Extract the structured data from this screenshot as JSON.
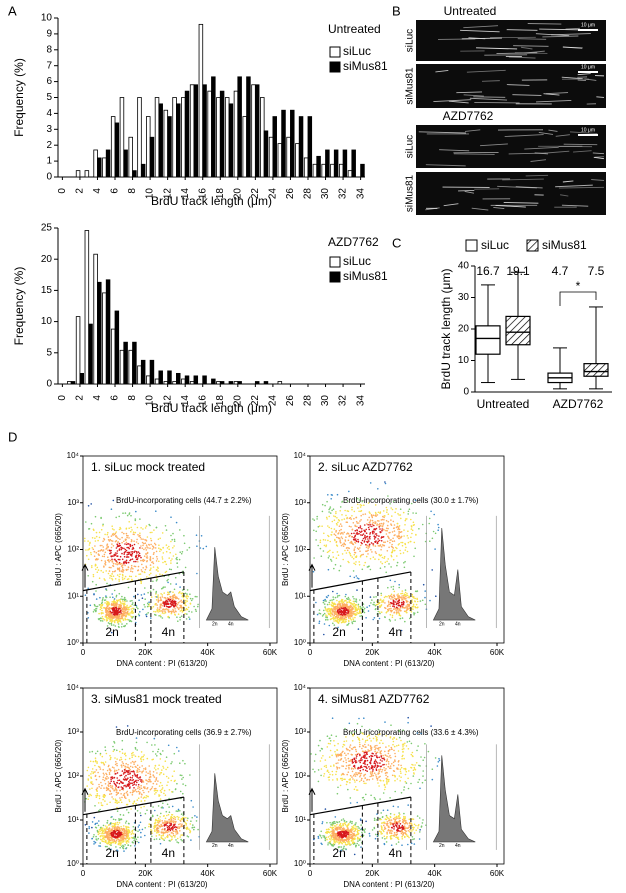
{
  "panel_labels": [
    "A",
    "B",
    "C",
    "D"
  ],
  "panel_b": {
    "titles": [
      "Untreated",
      "AZD7762"
    ],
    "rows": [
      "siLuc",
      "siMus81",
      "siLuc",
      "siMus81"
    ],
    "scale_bar": "10 μm"
  },
  "chart_data": [
    {
      "type": "bar",
      "title": "Untreated",
      "xlabel": "BrdU track length (μm)",
      "ylabel": "Frequency (%)",
      "x": [
        0,
        1,
        2,
        3,
        4,
        5,
        6,
        7,
        8,
        9,
        10,
        11,
        12,
        13,
        14,
        15,
        16,
        17,
        18,
        19,
        20,
        21,
        22,
        23,
        24,
        25,
        26,
        27,
        28,
        29,
        30,
        31,
        32,
        33,
        34
      ],
      "series": [
        {
          "name": "siLuc",
          "color": "#ffffff",
          "values": [
            0,
            0,
            0.4,
            0.4,
            1.7,
            1.2,
            3.8,
            5.0,
            2.5,
            5.0,
            3.8,
            5.0,
            4.2,
            5.0,
            5.0,
            5.8,
            9.6,
            5.4,
            5.0,
            5.0,
            5.4,
            3.8,
            5.8,
            5.0,
            2.5,
            2.1,
            2.5,
            2.1,
            1.2,
            0.8,
            0.8,
            0.8,
            0.8,
            0.4,
            0
          ]
        },
        {
          "name": "siMus81",
          "color": "#000000",
          "values": [
            0,
            0,
            0,
            0,
            1.2,
            1.7,
            3.4,
            1.7,
            0.4,
            0.8,
            2.5,
            4.6,
            3.8,
            4.6,
            5.4,
            5.8,
            5.8,
            6.3,
            5.4,
            4.6,
            6.3,
            6.3,
            5.8,
            2.9,
            3.8,
            4.2,
            4.2,
            3.8,
            3.8,
            1.3,
            1.7,
            1.7,
            1.7,
            1.7,
            0.8
          ]
        }
      ],
      "xlim": [
        -0.5,
        34.5
      ],
      "xticks": [
        0,
        2,
        4,
        6,
        8,
        10,
        12,
        14,
        16,
        18,
        20,
        22,
        24,
        26,
        28,
        30,
        32,
        34
      ],
      "ylim": [
        0,
        10
      ],
      "yticks": [
        0,
        1,
        2,
        3,
        4,
        5,
        6,
        7,
        8,
        9,
        10
      ]
    },
    {
      "type": "bar",
      "title": "AZD7762",
      "xlabel": "BrdU track length (μm)",
      "ylabel": "Frequency (%)",
      "x": [
        0,
        1,
        2,
        3,
        4,
        5,
        6,
        7,
        8,
        9,
        10,
        11,
        12,
        13,
        14,
        15,
        16,
        17,
        18,
        19,
        20,
        21,
        22,
        23,
        24,
        25,
        26,
        27,
        28,
        29,
        30,
        31,
        32,
        33,
        34
      ],
      "series": [
        {
          "name": "siLuc",
          "color": "#ffffff",
          "values": [
            0,
            0.4,
            10.8,
            24.6,
            20.8,
            14.6,
            8.8,
            5.4,
            5.4,
            2.9,
            1.3,
            0.8,
            0.4,
            0.4,
            0.8,
            0.4,
            0,
            0,
            0.4,
            0,
            0.4,
            0,
            0,
            0,
            0,
            0.4,
            0,
            0,
            0,
            0,
            0,
            0,
            0,
            0,
            0
          ]
        },
        {
          "name": "siMus81",
          "color": "#000000",
          "values": [
            0,
            0.4,
            1.7,
            9.6,
            16.3,
            16.7,
            11.7,
            6.7,
            6.7,
            3.8,
            3.8,
            2.1,
            2.1,
            1.7,
            1.3,
            1.3,
            1.3,
            0.8,
            0.4,
            0.4,
            0.4,
            0,
            0.4,
            0.4,
            0,
            0,
            0,
            0,
            0,
            0,
            0,
            0,
            0,
            0,
            0
          ]
        }
      ],
      "xlim": [
        -0.5,
        34.5
      ],
      "xticks": [
        0,
        2,
        4,
        6,
        8,
        10,
        12,
        14,
        16,
        18,
        20,
        22,
        24,
        26,
        28,
        30,
        32,
        34
      ],
      "ylim": [
        0,
        25
      ],
      "yticks": [
        0,
        5,
        10,
        15,
        20,
        25
      ]
    },
    {
      "type": "box",
      "ylabel": "BrdU track length (μm)",
      "categories": [
        "Untreated",
        "AZD7762"
      ],
      "series": [
        {
          "name": "siLuc",
          "color": "#ffffff",
          "hatch": false,
          "whislo": [
            3,
            1
          ],
          "q1": [
            12,
            3
          ],
          "med": [
            17,
            4.5
          ],
          "q3": [
            21,
            6
          ],
          "whishi": [
            34,
            14
          ],
          "means": [
            16.7,
            4.7
          ]
        },
        {
          "name": "siMus81",
          "color": "#ffffff",
          "hatch": true,
          "whislo": [
            4,
            1
          ],
          "q1": [
            15,
            5
          ],
          "med": [
            19,
            6.5
          ],
          "q3": [
            24,
            9
          ],
          "whishi": [
            38,
            27
          ],
          "means": [
            19.1,
            7.5
          ]
        }
      ],
      "annotation": "*",
      "ylim": [
        0,
        40
      ],
      "yticks": [
        0,
        10,
        20,
        30,
        40
      ]
    },
    {
      "type": "density",
      "title": "1. siLuc mock treated",
      "annotation": "BrdU-incorporating cells (44.7 ± 2.2%)",
      "xlabel": "DNA content : PI (613/20)",
      "ylabel": "BrdU : APC (665/20)",
      "gate_labels": [
        "2n",
        "4n"
      ],
      "xlim": [
        0,
        60000
      ],
      "xticks": [
        0,
        {
          "value": 20000,
          "label": "20K"
        },
        {
          "value": 40000,
          "label": "40K"
        },
        {
          "value": 60000,
          "label": "60K"
        }
      ],
      "ylog": true,
      "ylim": [
        1,
        10000
      ],
      "yticks": [
        {
          "value": 1,
          "label": "10⁰"
        },
        {
          "value": 10,
          "label": "10¹"
        },
        {
          "value": 100,
          "label": "10²"
        },
        {
          "value": 1000,
          "label": "10³"
        },
        {
          "value": 10000,
          "label": "10⁴"
        }
      ]
    },
    {
      "type": "density",
      "title": "2. siLuc AZD7762",
      "annotation": "BrdU-incorporating cells (30.0 ± 1.7%)",
      "xlabel": "DNA content : PI (613/20)",
      "ylabel": "BrdU : APC (665/20)",
      "gate_labels": [
        "2n",
        "4n"
      ],
      "xlim": [
        0,
        60000
      ],
      "xticks": [
        0,
        {
          "value": 20000,
          "label": "20K"
        },
        {
          "value": 40000,
          "label": "40K"
        },
        {
          "value": 60000,
          "label": "60K"
        }
      ],
      "ylog": true,
      "ylim": [
        1,
        10000
      ],
      "yticks": [
        {
          "value": 1,
          "label": "10⁰"
        },
        {
          "value": 10,
          "label": "10¹"
        },
        {
          "value": 100,
          "label": "10²"
        },
        {
          "value": 1000,
          "label": "10³"
        },
        {
          "value": 10000,
          "label": "10⁴"
        }
      ]
    },
    {
      "type": "density",
      "title": "3. siMus81 mock treated",
      "annotation": "BrdU-incorporating cells (36.9 ± 2.7%)",
      "xlabel": "DNA content : PI (613/20)",
      "ylabel": "BrdU : APC (665/20)",
      "gate_labels": [
        "2n",
        "4n"
      ],
      "xlim": [
        0,
        60000
      ],
      "xticks": [
        0,
        {
          "value": 20000,
          "label": "20K"
        },
        {
          "value": 40000,
          "label": "40K"
        },
        {
          "value": 60000,
          "label": "60K"
        }
      ],
      "ylog": true,
      "ylim": [
        1,
        10000
      ],
      "yticks": [
        {
          "value": 1,
          "label": "10⁰"
        },
        {
          "value": 10,
          "label": "10¹"
        },
        {
          "value": 100,
          "label": "10²"
        },
        {
          "value": 1000,
          "label": "10³"
        },
        {
          "value": 10000,
          "label": "10⁴"
        }
      ]
    },
    {
      "type": "density",
      "title": "4. siMus81 AZD7762",
      "annotation": "BrdU-incorporating cells (33.6 ± 4.3%)",
      "xlabel": "DNA content : PI (613/20)",
      "ylabel": "BrdU : APC (665/20)",
      "gate_labels": [
        "2n",
        "4n"
      ],
      "xlim": [
        0,
        60000
      ],
      "xticks": [
        0,
        {
          "value": 20000,
          "label": "20K"
        },
        {
          "value": 40000,
          "label": "40K"
        },
        {
          "value": 60000,
          "label": "60K"
        }
      ],
      "ylog": true,
      "ylim": [
        1,
        10000
      ],
      "yticks": [
        {
          "value": 1,
          "label": "10⁰"
        },
        {
          "value": 10,
          "label": "10¹"
        },
        {
          "value": 100,
          "label": "10²"
        },
        {
          "value": 1000,
          "label": "10³"
        },
        {
          "value": 10000,
          "label": "10⁴"
        }
      ]
    }
  ]
}
